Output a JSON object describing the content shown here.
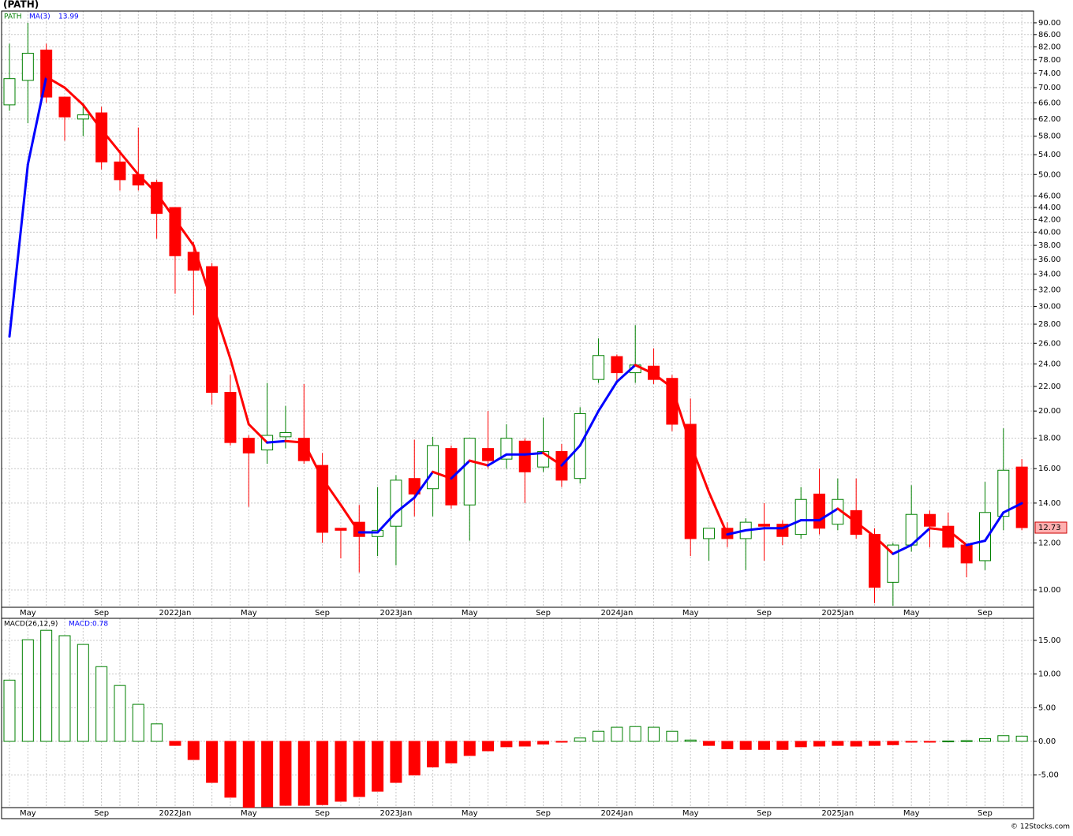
{
  "chart_data": [
    {
      "type": "candlestick",
      "title": "(PATH)",
      "symbol_label": "PATH",
      "categories": [
        null,
        "May",
        null,
        null,
        null,
        "Sep",
        null,
        null,
        null,
        "2022Jan",
        null,
        null,
        null,
        "May",
        null,
        null,
        null,
        "Sep",
        null,
        null,
        null,
        "2023Jan",
        null,
        null,
        null,
        "May",
        null,
        null,
        null,
        "Sep",
        null,
        null,
        null,
        "2024Jan",
        null,
        null,
        null,
        "May",
        null,
        null,
        null,
        "Sep",
        null,
        null,
        null,
        "2025Jan",
        null,
        null,
        null,
        "May",
        null,
        null,
        null,
        "Sep",
        null,
        null
      ],
      "open": [
        65.5,
        72,
        81,
        67.5,
        62,
        63.5,
        52.5,
        50,
        48.5,
        44,
        37,
        35,
        21.5,
        18,
        17.2,
        18.1,
        18,
        16.2,
        12.7,
        13,
        12.3,
        12.8,
        15.4,
        14.8,
        17.3,
        13.9,
        17.3,
        16.6,
        17.8,
        16.1,
        17.1,
        15.4,
        22.6,
        24.7,
        23.2,
        23.8,
        22.7,
        19,
        12.2,
        12.7,
        12.2,
        12.9,
        12.9,
        12.4,
        14.5,
        12.9,
        13.6,
        12.4,
        10.3,
        11.9,
        13.4,
        12.8,
        11.9,
        11.2,
        13.3,
        16.1
      ],
      "high": [
        83,
        90,
        83,
        67.5,
        66,
        65,
        55,
        60,
        49,
        44,
        38.5,
        35.5,
        23,
        18.2,
        22.3,
        20.4,
        22.2,
        17,
        12.7,
        13.9,
        14.9,
        15.6,
        17.9,
        18.1,
        17.5,
        18,
        20,
        19,
        18,
        19.5,
        17.6,
        20.3,
        26.5,
        24.9,
        27.9,
        25.5,
        23,
        21,
        12.7,
        13,
        13.2,
        14,
        13.1,
        14.9,
        16,
        15.4,
        15.4,
        12.7,
        12,
        15,
        13.6,
        13.5,
        11.9,
        15.2,
        18.7,
        16.6
      ],
      "low": [
        64,
        61,
        66,
        57,
        58,
        51,
        47,
        47,
        39,
        31.5,
        29,
        20.5,
        17.5,
        13.8,
        16.3,
        17.3,
        16.3,
        12,
        11.3,
        10.7,
        11.4,
        11,
        13.3,
        13.3,
        13.7,
        12.1,
        16,
        16,
        14,
        15.8,
        14.9,
        15.1,
        22.3,
        22.4,
        22.3,
        22.2,
        18.5,
        11.4,
        11.2,
        11.8,
        10.8,
        11.2,
        11.9,
        12.2,
        12.4,
        12.6,
        12.2,
        9.5,
        9.4,
        11.6,
        11.8,
        11.8,
        10.5,
        10.8,
        12.6,
        12.6
      ],
      "close": [
        72.5,
        80,
        67.5,
        62.5,
        63,
        52.5,
        49,
        48,
        43,
        36.5,
        34.5,
        21.5,
        17.7,
        17,
        18.2,
        18.4,
        16.5,
        12.5,
        12.6,
        12.3,
        12.6,
        15.3,
        14.5,
        17.5,
        13.9,
        18,
        16.5,
        18,
        15.8,
        17.1,
        15.3,
        19.8,
        24.8,
        23.2,
        23.9,
        22.6,
        19,
        12.2,
        12.7,
        12.2,
        13,
        12.8,
        12.3,
        14.2,
        12.7,
        14.2,
        12.4,
        10.1,
        11.9,
        13.4,
        12.8,
        11.8,
        11.1,
        13.5,
        15.9,
        12.73
      ],
      "up_color": "#008000",
      "down_color": "#ff0000",
      "symbol_color": "#008000",
      "series": [
        {
          "name": "MA(3)",
          "up_color": "#0000ff",
          "down_color": "#ff0000",
          "values": [
            26.7,
            52,
            73,
            70,
            65.5,
            59.5,
            54.5,
            50,
            46.5,
            42,
            38,
            30.5,
            24.5,
            19,
            17.7,
            17.8,
            17.7,
            15.4,
            13.9,
            12.5,
            12.5,
            13.5,
            14.3,
            15.8,
            15.4,
            16.5,
            16.2,
            16.9,
            16.9,
            17.0,
            16.2,
            17.5,
            20.0,
            22.4,
            23.9,
            23.1,
            21.9,
            17.6,
            14.6,
            12.4,
            12.6,
            12.7,
            12.7,
            13.1,
            13.1,
            13.7,
            13.0,
            12.3,
            11.5,
            11.9,
            12.7,
            12.6,
            11.9,
            12.1,
            13.5,
            13.99
          ]
        }
      ],
      "ma_value_label": "13.99",
      "last_price_label": "12.73",
      "log_scale": true,
      "grid": true,
      "ylim": [
        9.35,
        94.2
      ],
      "yticks": [
        {
          "value": 10,
          "label": "10.00"
        },
        {
          "value": 12,
          "label": "12.00"
        },
        {
          "value": 14,
          "label": "14.00"
        },
        {
          "value": 16,
          "label": "16.00"
        },
        {
          "value": 18,
          "label": "18.00"
        },
        {
          "value": 20,
          "label": "20.00"
        },
        {
          "value": 22,
          "label": "22.00"
        },
        {
          "value": 24,
          "label": "24.00"
        },
        {
          "value": 26,
          "label": "26.00"
        },
        {
          "value": 28,
          "label": "28.00"
        },
        {
          "value": 30,
          "label": "30.00"
        },
        {
          "value": 32,
          "label": "32.00"
        },
        {
          "value": 34,
          "label": "34.00"
        },
        {
          "value": 36,
          "label": "36.00"
        },
        {
          "value": 38,
          "label": "38.00"
        },
        {
          "value": 40,
          "label": "40.00"
        },
        {
          "value": 42,
          "label": "42.00"
        },
        {
          "value": 44,
          "label": "44.00"
        },
        {
          "value": 46,
          "label": "46.00"
        },
        {
          "value": 50,
          "label": "50.00"
        },
        {
          "value": 54,
          "label": "54.00"
        },
        {
          "value": 58,
          "label": "58.00"
        },
        {
          "value": 62,
          "label": "62.00"
        },
        {
          "value": 66,
          "label": "66.00"
        },
        {
          "value": 70,
          "label": "70.00"
        },
        {
          "value": 74,
          "label": "74.00"
        },
        {
          "value": 78,
          "label": "78.00"
        },
        {
          "value": 82,
          "label": "82.00"
        },
        {
          "value": 86,
          "label": "86.00"
        },
        {
          "value": 90,
          "label": "90.00"
        }
      ]
    },
    {
      "type": "bar",
      "legend_title": "MACD(26,12,9)",
      "value_label": "MACD:0.78",
      "categories": [
        null,
        "May",
        null,
        null,
        null,
        "Sep",
        null,
        null,
        null,
        "2022Jan",
        null,
        null,
        null,
        "May",
        null,
        null,
        null,
        "Sep",
        null,
        null,
        null,
        "2023Jan",
        null,
        null,
        null,
        "May",
        null,
        null,
        null,
        "Sep",
        null,
        null,
        null,
        "2024Jan",
        null,
        null,
        null,
        "May",
        null,
        null,
        null,
        "Sep",
        null,
        null,
        null,
        "2025Jan",
        null,
        null,
        null,
        "May",
        null,
        null,
        null,
        "Sep",
        null,
        null
      ],
      "values": [
        9.1,
        15.1,
        16.5,
        15.7,
        14.4,
        11.1,
        8.3,
        5.5,
        2.6,
        -0.6,
        -2.7,
        -6.1,
        -8.3,
        -9.8,
        -9.7,
        -9.5,
        -9.5,
        -9.4,
        -8.9,
        -8.2,
        -7.4,
        -6.1,
        -5.0,
        -3.8,
        -3.2,
        -2.1,
        -1.4,
        -0.8,
        -0.7,
        -0.4,
        -0.1,
        0.5,
        1.5,
        2.1,
        2.2,
        2.1,
        1.5,
        0.2,
        -0.6,
        -1.1,
        -1.2,
        -1.2,
        -1.2,
        -0.8,
        -0.7,
        -0.6,
        -0.7,
        -0.6,
        -0.5,
        -0.1,
        -0.05,
        0.05,
        0.1,
        0.4,
        0.85,
        0.78
      ],
      "positive_color": "#008000",
      "negative_color": "#ff0000",
      "grid": true,
      "ylim": [
        -9.84,
        18.28
      ],
      "yticks": [
        {
          "value": -5,
          "label": "-5.00"
        },
        {
          "value": 0,
          "label": "0.00"
        },
        {
          "value": 5,
          "label": "5.00"
        },
        {
          "value": 10,
          "label": "10.00"
        },
        {
          "value": 15,
          "label": "15.00"
        }
      ]
    }
  ],
  "footer": "© 12Stocks.com"
}
